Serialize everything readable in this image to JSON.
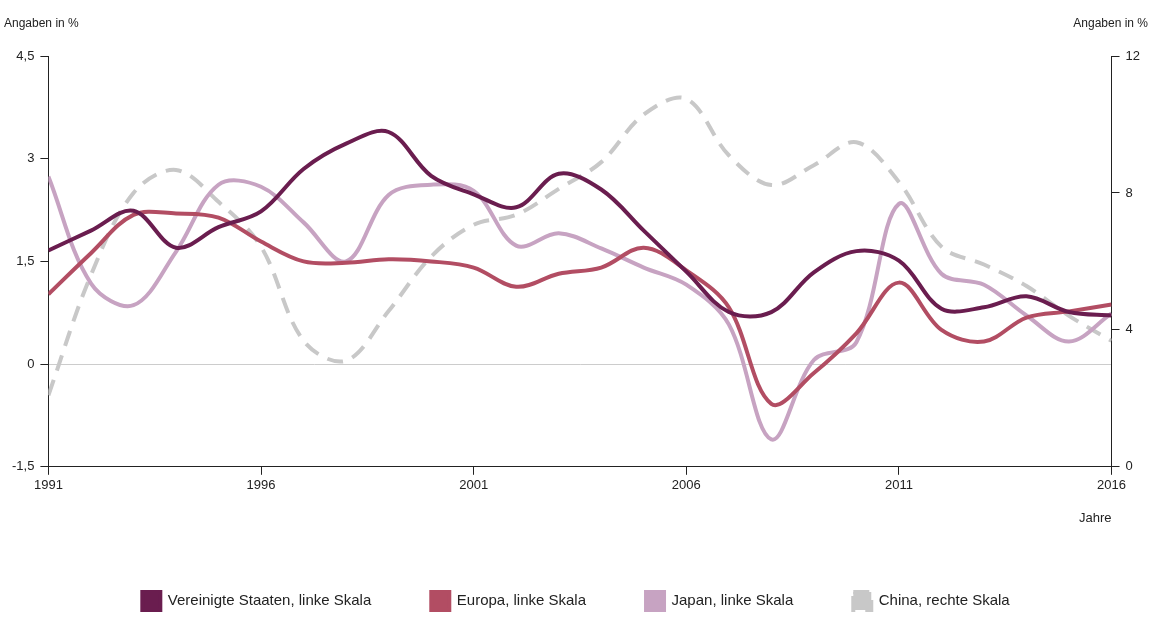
{
  "chart_data": {
    "type": "line",
    "y_label": "Angaben in %",
    "y2_label": "Angaben in %",
    "x_label": "Jahre",
    "x": [
      1991,
      1992,
      1993,
      1994,
      1995,
      1996,
      1997,
      1998,
      1999,
      2000,
      2001,
      2002,
      2003,
      2004,
      2005,
      2006,
      2007,
      2008,
      2009,
      2010,
      2011,
      2012,
      2013,
      2014,
      2015,
      2016
    ],
    "xlim": [
      1991,
      2016
    ],
    "xticks": [
      1991,
      1996,
      2001,
      2006,
      2011,
      2016
    ],
    "ylim": [
      -1.5,
      4.5
    ],
    "yticks": [
      {
        "value": -1.5,
        "label": "-1,5"
      },
      0,
      {
        "value": 1.5,
        "label": "1,5"
      },
      3,
      {
        "value": 4.5,
        "label": "4,5"
      }
    ],
    "y2lim": [
      0,
      12
    ],
    "y2ticks": [
      0,
      4,
      8,
      12
    ],
    "grid": false,
    "legend": "bottom",
    "series": [
      {
        "name": "Vereinigte Staaten, linke Skala",
        "color": "#6a1d4f",
        "line_style": "solid",
        "axis": "y",
        "values": [
          1.66,
          1.95,
          2.24,
          1.7,
          2.0,
          2.23,
          2.85,
          3.22,
          3.39,
          2.75,
          2.48,
          2.29,
          2.78,
          2.55,
          1.95,
          1.35,
          0.76,
          0.76,
          1.34,
          1.65,
          1.51,
          0.81,
          0.83,
          0.99,
          0.76,
          0.71
        ]
      },
      {
        "name": "Europa, linke Skala",
        "color": "#b24d63",
        "line_style": "solid",
        "axis": "y",
        "values": [
          1.02,
          1.62,
          2.18,
          2.2,
          2.14,
          1.79,
          1.5,
          1.48,
          1.53,
          1.5,
          1.41,
          1.13,
          1.32,
          1.41,
          1.7,
          1.37,
          0.83,
          -0.58,
          -0.13,
          0.45,
          1.19,
          0.5,
          0.33,
          0.68,
          0.77,
          0.87
        ]
      },
      {
        "name": "Japan, linke Skala",
        "color": "#c7a3c2",
        "line_style": "solid",
        "axis": "y",
        "values": [
          2.74,
          1.18,
          0.86,
          1.64,
          2.62,
          2.59,
          2.07,
          1.5,
          2.47,
          2.62,
          2.53,
          1.73,
          1.91,
          1.69,
          1.41,
          1.16,
          0.58,
          -1.1,
          0.06,
          0.32,
          2.34,
          1.32,
          1.16,
          0.71,
          0.33,
          0.74
        ]
      },
      {
        "name": "China, rechte Skala",
        "color": "#c8c8c8",
        "line_style": "dashed",
        "axis": "y2",
        "values": [
          2.09,
          5.6,
          8.0,
          8.67,
          7.74,
          6.43,
          3.68,
          3.1,
          4.55,
          6.14,
          7.07,
          7.36,
          8.12,
          8.9,
          10.29,
          10.75,
          9.1,
          8.23,
          8.81,
          9.48,
          8.32,
          6.43,
          5.91,
          5.28,
          4.41,
          3.68
        ]
      }
    ]
  }
}
